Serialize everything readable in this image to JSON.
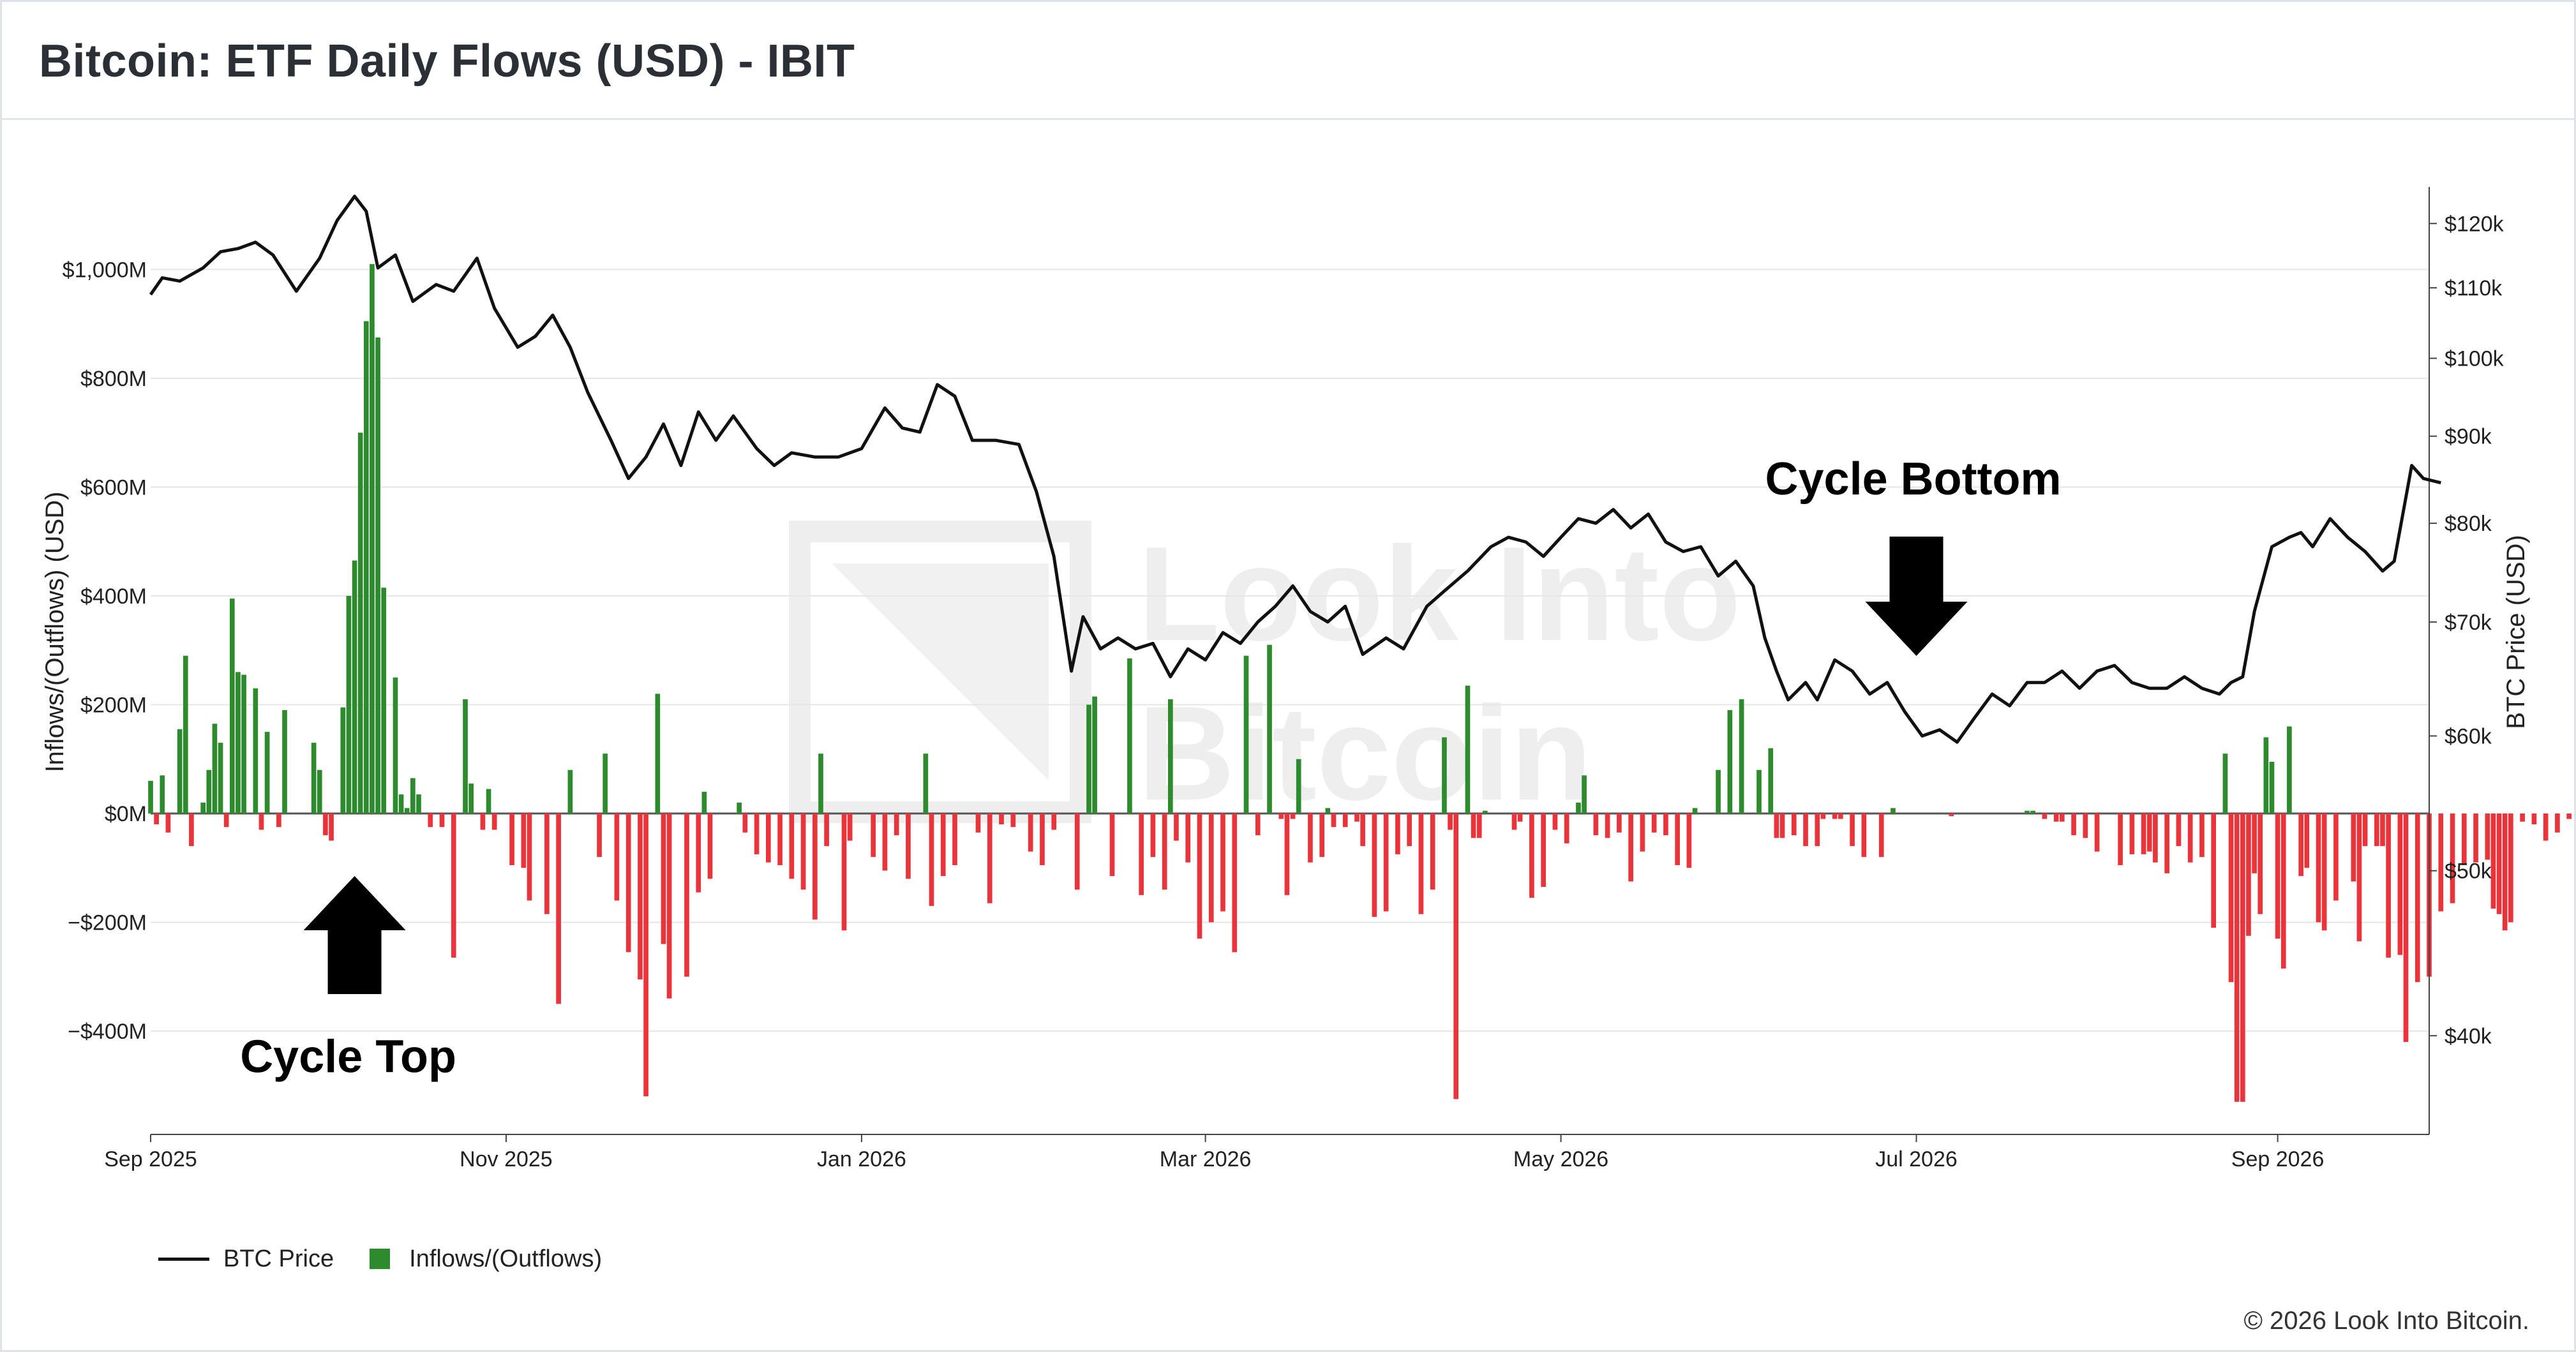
{
  "header": {
    "title": "Bitcoin: ETF Daily Flows (USD) - IBIT"
  },
  "footer": {
    "copyright": "© 2026 Look Into Bitcoin."
  },
  "watermark": {
    "line1": "Look Into",
    "line2": "Bitcoin"
  },
  "chart_data": {
    "type": "bar",
    "title": "Bitcoin: ETF Daily Flows (USD) - IBIT",
    "x_range": [
      "2025-09-01",
      "2026-09-27"
    ],
    "x_ticks": [
      {
        "date": "2025-09-01",
        "label": "Sep 2025"
      },
      {
        "date": "2025-11-01",
        "label": "Nov 2025"
      },
      {
        "date": "2026-01-01",
        "label": "Jan 2026"
      },
      {
        "date": "2026-03-01",
        "label": "Mar 2026"
      },
      {
        "date": "2026-05-01",
        "label": "May 2026"
      },
      {
        "date": "2026-07-01",
        "label": "Jul 2026"
      },
      {
        "date": "2026-09-01",
        "label": "Sep 2026"
      }
    ],
    "y_left": {
      "label": "Inflows/(Outflows) (USD)",
      "range": [
        -590,
        1140
      ],
      "ticks": [
        {
          "value": 1000,
          "label": "$1,000M"
        },
        {
          "value": 800,
          "label": "$800M"
        },
        {
          "value": 600,
          "label": "$600M"
        },
        {
          "value": 400,
          "label": "$400M"
        },
        {
          "value": 200,
          "label": "$200M"
        },
        {
          "value": 0,
          "label": "$0M"
        },
        {
          "value": -200,
          "label": "−$200M"
        },
        {
          "value": -400,
          "label": "−$400M"
        }
      ]
    },
    "y_right": {
      "label": "BTC Price (USD)",
      "scale": "log",
      "range": [
        35000,
        125000
      ],
      "ticks": [
        {
          "value": 120000,
          "label": "$120k"
        },
        {
          "value": 110000,
          "label": "$110k"
        },
        {
          "value": 100000,
          "label": "$100k"
        },
        {
          "value": 90000,
          "label": "$90k"
        },
        {
          "value": 80000,
          "label": "$80k"
        },
        {
          "value": 70000,
          "label": "$70k"
        },
        {
          "value": 60000,
          "label": "$60k"
        },
        {
          "value": 50000,
          "label": "$50k"
        },
        {
          "value": 40000,
          "label": "$40k"
        }
      ]
    },
    "grid": true,
    "legend": {
      "position": "bottom-left",
      "entries": [
        "BTC Price",
        "Inflows/(Outflows)"
      ]
    },
    "colors": {
      "inflow": "#2d8a2d",
      "outflow": "#e8343a",
      "price": "#111111"
    },
    "flow_start": "2025-09-01",
    "flows": [
      60,
      -20,
      70,
      -35,
      0,
      155,
      290,
      -60,
      0,
      20,
      80,
      165,
      130,
      -25,
      395,
      260,
      255,
      0,
      230,
      -30,
      150,
      0,
      -25,
      190,
      0,
      0,
      0,
      0,
      130,
      80,
      -40,
      -50,
      0,
      195,
      400,
      465,
      700,
      905,
      1010,
      875,
      415,
      0,
      250,
      35,
      10,
      65,
      35,
      0,
      -25,
      0,
      -25,
      0,
      -265,
      0,
      210,
      55,
      0,
      -30,
      45,
      -30,
      0,
      0,
      -95,
      0,
      -100,
      -160,
      0,
      0,
      -185,
      0,
      -350,
      0,
      80,
      0,
      0,
      0,
      0,
      -80,
      110,
      0,
      -160,
      0,
      -255,
      0,
      -305,
      -520,
      0,
      220,
      -240,
      -340,
      0,
      0,
      -300,
      0,
      -145,
      40,
      -120,
      0,
      0,
      0,
      0,
      20,
      -35,
      0,
      -75,
      0,
      -90,
      0,
      -95,
      0,
      -120,
      0,
      -140,
      0,
      -195,
      110,
      -60,
      0,
      0,
      -215,
      -50,
      0,
      0,
      0,
      -80,
      0,
      -105,
      0,
      -40,
      0,
      -120,
      0,
      0,
      110,
      -170,
      0,
      -115,
      0,
      -95,
      0,
      0,
      0,
      -35,
      0,
      -165,
      0,
      -20,
      0,
      -25,
      0,
      0,
      -70,
      0,
      -95,
      0,
      -30,
      0,
      0,
      0,
      -140,
      0,
      200,
      215,
      0,
      0,
      -115,
      0,
      0,
      285,
      0,
      -150,
      0,
      -80,
      0,
      -140,
      210,
      -50,
      0,
      -90,
      0,
      -230,
      0,
      -200,
      0,
      -180,
      0,
      -255,
      0,
      290,
      0,
      -40,
      0,
      310,
      0,
      -10,
      -150,
      -10,
      100,
      0,
      -90,
      0,
      -80,
      10,
      -25,
      0,
      -25,
      0,
      -15,
      -60,
      0,
      -190,
      0,
      -180,
      0,
      -75,
      0,
      -60,
      0,
      -185,
      0,
      -140,
      0,
      140,
      -30,
      -525,
      0,
      235,
      -45,
      -45,
      5,
      0,
      0,
      0,
      0,
      -30,
      -15,
      0,
      -155,
      0,
      -135,
      0,
      -30,
      0,
      -55,
      0,
      20,
      70,
      0,
      -40,
      0,
      -45,
      0,
      -35,
      0,
      -125,
      0,
      -70,
      0,
      -35,
      0,
      -40,
      0,
      -95,
      0,
      -100,
      10,
      0,
      0,
      0,
      80,
      0,
      190,
      0,
      210,
      0,
      0,
      80,
      0,
      120,
      -45,
      -45,
      0,
      -40,
      0,
      -60,
      0,
      -60,
      -10,
      0,
      -10,
      -10,
      0,
      -60,
      0,
      -80,
      0,
      0,
      -80,
      0,
      10,
      0,
      0,
      0,
      0,
      0,
      0,
      0,
      0,
      0,
      -5,
      0,
      0,
      0,
      0,
      0,
      0,
      0,
      0,
      0,
      0,
      0,
      0,
      5,
      5,
      0,
      -10,
      0,
      -15,
      -15,
      0,
      -40,
      0,
      -45,
      0,
      -70,
      0,
      0,
      0,
      -95,
      0,
      -75,
      0,
      -75,
      -70,
      -90,
      0,
      -110,
      0,
      -60,
      0,
      -90,
      0,
      -80,
      0,
      -210,
      0,
      110,
      -310,
      -530,
      -530,
      -225,
      -110,
      -185,
      140,
      95,
      -230,
      -285,
      160,
      0,
      -115,
      -100,
      0,
      -200,
      -215,
      0,
      -160,
      0,
      0,
      -125,
      -235,
      -60,
      0,
      -60,
      -60,
      -265,
      0,
      -260,
      -420,
      0,
      -310,
      0,
      -300,
      0,
      -180,
      0,
      -165,
      0,
      -95,
      0,
      -90,
      0,
      -85,
      -175,
      -185,
      -215,
      -200,
      0,
      -15,
      0,
      -20,
      0,
      -50,
      0,
      -35,
      0,
      -10,
      0,
      -20,
      0,
      -5,
      0,
      0
    ],
    "price_points": [
      [
        "2025-09-01",
        109000
      ],
      [
        "2025-09-03",
        111500
      ],
      [
        "2025-09-06",
        111000
      ],
      [
        "2025-09-10",
        113000
      ],
      [
        "2025-09-13",
        115500
      ],
      [
        "2025-09-16",
        116000
      ],
      [
        "2025-09-19",
        117000
      ],
      [
        "2025-09-22",
        115000
      ],
      [
        "2025-09-26",
        109500
      ],
      [
        "2025-09-30",
        114500
      ],
      [
        "2025-10-03",
        120500
      ],
      [
        "2025-10-06",
        124500
      ],
      [
        "2025-10-08",
        122000
      ],
      [
        "2025-10-10",
        113000
      ],
      [
        "2025-10-13",
        115000
      ],
      [
        "2025-10-16",
        108000
      ],
      [
        "2025-10-20",
        110500
      ],
      [
        "2025-10-23",
        109500
      ],
      [
        "2025-10-27",
        114500
      ],
      [
        "2025-10-30",
        107000
      ],
      [
        "2025-11-03",
        101500
      ],
      [
        "2025-11-06",
        103000
      ],
      [
        "2025-11-09",
        106000
      ],
      [
        "2025-11-12",
        101500
      ],
      [
        "2025-11-15",
        95500
      ],
      [
        "2025-11-19",
        89500
      ],
      [
        "2025-11-22",
        85000
      ],
      [
        "2025-11-25",
        87500
      ],
      [
        "2025-11-28",
        91500
      ],
      [
        "2025-12-01",
        86500
      ],
      [
        "2025-12-04",
        93000
      ],
      [
        "2025-12-07",
        89500
      ],
      [
        "2025-12-10",
        92500
      ],
      [
        "2025-12-14",
        88500
      ],
      [
        "2025-12-17",
        86500
      ],
      [
        "2025-12-20",
        88000
      ],
      [
        "2025-12-24",
        87500
      ],
      [
        "2025-12-28",
        87500
      ],
      [
        "2026-01-01",
        88500
      ],
      [
        "2026-01-05",
        93500
      ],
      [
        "2026-01-08",
        91000
      ],
      [
        "2026-01-11",
        90500
      ],
      [
        "2026-01-14",
        96500
      ],
      [
        "2026-01-17",
        95000
      ],
      [
        "2026-01-20",
        89500
      ],
      [
        "2026-01-24",
        89500
      ],
      [
        "2026-01-28",
        89000
      ],
      [
        "2026-01-31",
        83500
      ],
      [
        "2026-02-03",
        76500
      ],
      [
        "2026-02-06",
        65500
      ],
      [
        "2026-02-08",
        70500
      ],
      [
        "2026-02-11",
        67500
      ],
      [
        "2026-02-14",
        68500
      ],
      [
        "2026-02-17",
        67500
      ],
      [
        "2026-02-20",
        68000
      ],
      [
        "2026-02-23",
        65000
      ],
      [
        "2026-02-26",
        67500
      ],
      [
        "2026-03-01",
        66500
      ],
      [
        "2026-03-04",
        69000
      ],
      [
        "2026-03-07",
        68000
      ],
      [
        "2026-03-10",
        70000
      ],
      [
        "2026-03-13",
        71500
      ],
      [
        "2026-03-16",
        73500
      ],
      [
        "2026-03-19",
        71000
      ],
      [
        "2026-03-22",
        70000
      ],
      [
        "2026-03-25",
        71500
      ],
      [
        "2026-03-28",
        67000
      ],
      [
        "2026-04-01",
        68500
      ],
      [
        "2026-04-04",
        67500
      ],
      [
        "2026-04-08",
        71500
      ],
      [
        "2026-04-11",
        73000
      ],
      [
        "2026-04-15",
        75000
      ],
      [
        "2026-04-19",
        77500
      ],
      [
        "2026-04-22",
        78500
      ],
      [
        "2026-04-25",
        78000
      ],
      [
        "2026-04-28",
        76500
      ],
      [
        "2026-05-01",
        78500
      ],
      [
        "2026-05-04",
        80500
      ],
      [
        "2026-05-07",
        80000
      ],
      [
        "2026-05-10",
        81500
      ],
      [
        "2026-05-13",
        79500
      ],
      [
        "2026-05-16",
        81000
      ],
      [
        "2026-05-19",
        78000
      ],
      [
        "2026-05-22",
        77000
      ],
      [
        "2026-05-25",
        77500
      ],
      [
        "2026-05-28",
        74500
      ],
      [
        "2026-05-31",
        76000
      ],
      [
        "2026-06-03",
        73500
      ],
      [
        "2026-06-05",
        68500
      ],
      [
        "2026-06-07",
        65500
      ],
      [
        "2026-06-09",
        63000
      ],
      [
        "2026-06-12",
        64500
      ],
      [
        "2026-06-14",
        63000
      ],
      [
        "2026-06-17",
        66500
      ],
      [
        "2026-06-20",
        65500
      ],
      [
        "2026-06-23",
        63500
      ],
      [
        "2026-06-26",
        64500
      ],
      [
        "2026-06-29",
        62000
      ],
      [
        "2026-07-02",
        60000
      ],
      [
        "2026-07-05",
        60500
      ],
      [
        "2026-07-08",
        59500
      ],
      [
        "2026-07-11",
        61500
      ],
      [
        "2026-07-14",
        63500
      ],
      [
        "2026-07-17",
        62500
      ],
      [
        "2026-07-20",
        64500
      ],
      [
        "2026-07-23",
        64500
      ],
      [
        "2026-07-26",
        65500
      ],
      [
        "2026-07-29",
        64000
      ],
      [
        "2026-08-01",
        65500
      ],
      [
        "2026-08-04",
        66000
      ],
      [
        "2026-08-07",
        64500
      ],
      [
        "2026-08-10",
        64000
      ],
      [
        "2026-08-13",
        64000
      ],
      [
        "2026-08-16",
        65000
      ],
      [
        "2026-08-19",
        64000
      ],
      [
        "2026-08-22",
        63500
      ],
      [
        "2026-08-24",
        64500
      ],
      [
        "2026-08-26",
        65000
      ],
      [
        "2026-08-28",
        71000
      ],
      [
        "2026-08-31",
        77500
      ],
      [
        "2026-09-03",
        78500
      ],
      [
        "2026-09-05",
        79000
      ],
      [
        "2026-09-07",
        77500
      ],
      [
        "2026-09-10",
        80500
      ],
      [
        "2026-09-13",
        78500
      ],
      [
        "2026-09-16",
        77000
      ],
      [
        "2026-09-19",
        75000
      ],
      [
        "2026-09-21",
        76000
      ],
      [
        "2026-09-24",
        86500
      ],
      [
        "2026-09-26",
        85000
      ],
      [
        "2026-09-29",
        84500
      ]
    ],
    "annotations": [
      {
        "text": "Cycle Top",
        "date": "2025-10-06",
        "value": -470,
        "arrow": "up"
      },
      {
        "text": "Cycle Bottom",
        "date": "2026-07-01",
        "value": 610,
        "arrow": "down"
      }
    ]
  }
}
